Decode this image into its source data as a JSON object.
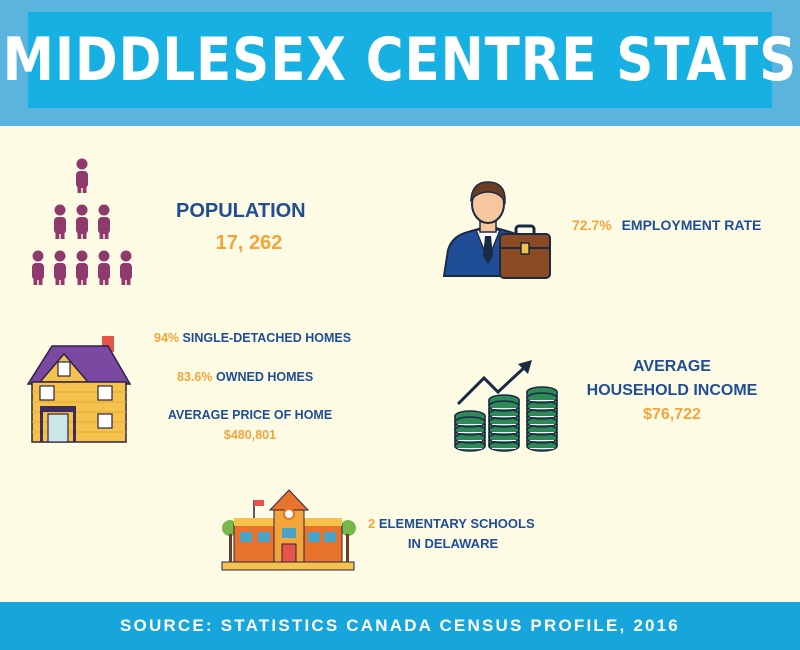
{
  "header": {
    "title": "MIDDLESEX CENTRE STATS"
  },
  "population": {
    "label": "POPULATION",
    "value": "17, 262"
  },
  "employment": {
    "value": "72.7%",
    "label": "EMPLOYMENT RATE"
  },
  "housing": {
    "single_detached_value": "94%",
    "single_detached_label": "SINGLE-DETACHED HOMES",
    "owned_value": "83.6%",
    "owned_label": "OWNED HOMES",
    "avg_price_label": "AVERAGE PRICE OF HOME",
    "avg_price_value": "$480,801"
  },
  "income": {
    "label_line1": "AVERAGE",
    "label_line2": "HOUSEHOLD INCOME",
    "value": "$76,722"
  },
  "schools": {
    "value": "2",
    "label_line1": "ELEMENTARY SCHOOLS",
    "label_line2": "IN DELAWARE"
  },
  "footer": {
    "source": "SOURCE: STATISTICS CANADA CENSUS PROFILE, 2016"
  },
  "colors": {
    "header_band": "#5ab4de",
    "title_bg": "#16b0e2",
    "footer_bg": "#16a6dc",
    "text_blue": "#1f4e96",
    "text_orange": "#f3a43b",
    "people": "#8e3a6c",
    "background": "#fefbe5"
  },
  "icons": [
    "people-pyramid-icon",
    "businessman-icon",
    "briefcase-icon",
    "house-icon",
    "coins-growth-icon",
    "school-icon"
  ]
}
